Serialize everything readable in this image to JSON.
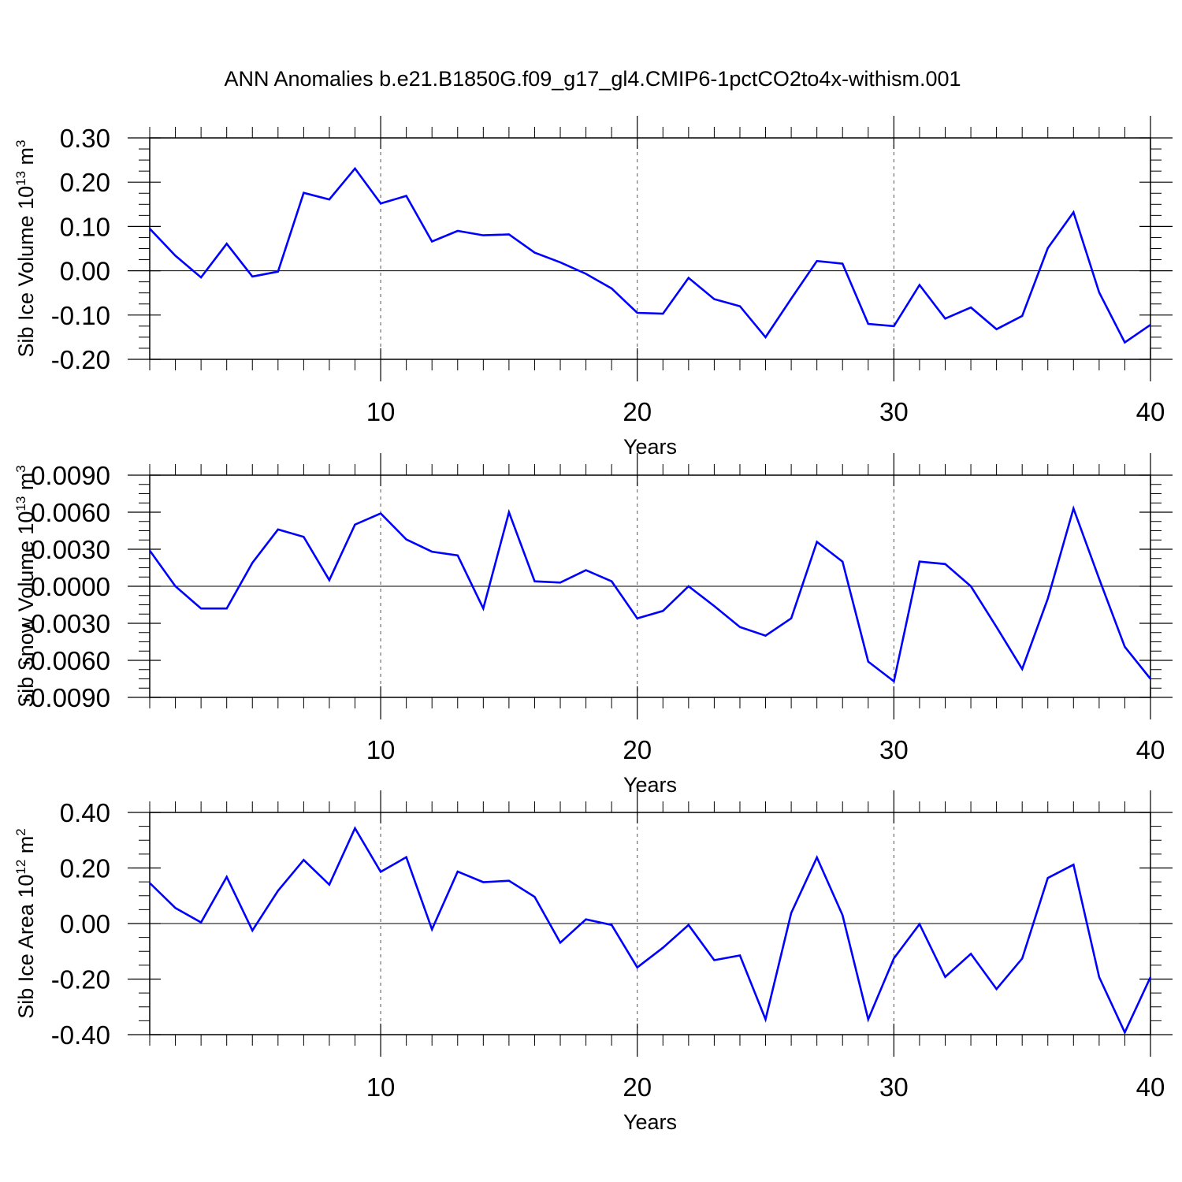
{
  "title": "ANN Anomalies b.e21.B1850G.f09_g17_gl4.CMIP6-1pctCO2to4x-withism.001",
  "colors": {
    "line": "#0000ff",
    "frame": "#000000",
    "grid": "#555555"
  },
  "chart_data": [
    {
      "type": "line",
      "xlabel": "Years",
      "ylabel": {
        "text": "Sib Ice Volume 10",
        "exp": "13",
        "unit": " m",
        "unit_exp": "3"
      },
      "xlim": [
        1,
        40
      ],
      "ylim": [
        -0.2,
        0.3
      ],
      "xticks": [
        10,
        20,
        30,
        40
      ],
      "xtick_labels": [
        "10",
        "20",
        "30",
        "40"
      ],
      "yticks": [
        0.3,
        0.2,
        0.1,
        0.0,
        -0.1,
        -0.2
      ],
      "ytick_labels": [
        "0.30",
        "0.20",
        "0.10",
        "0.00",
        "-0.10",
        "-0.20"
      ],
      "ygrid_zero": true,
      "xgrid": [
        10,
        20,
        30
      ],
      "x": [
        1,
        2,
        3,
        4,
        5,
        6,
        7,
        8,
        9,
        10,
        11,
        12,
        13,
        14,
        15,
        16,
        17,
        18,
        19,
        20,
        21,
        22,
        23,
        24,
        25,
        26,
        27,
        28,
        29,
        30,
        31,
        32,
        33,
        34,
        35,
        36,
        37,
        38,
        39,
        40
      ],
      "values": [
        0.095,
        0.034,
        -0.015,
        0.061,
        -0.013,
        -0.002,
        0.176,
        0.161,
        0.231,
        0.152,
        0.169,
        0.066,
        0.09,
        0.08,
        0.082,
        0.041,
        0.019,
        -0.007,
        -0.04,
        -0.095,
        -0.097,
        -0.016,
        -0.064,
        -0.08,
        -0.15,
        -0.063,
        0.022,
        0.016,
        -0.12,
        -0.125,
        -0.032,
        -0.108,
        -0.083,
        -0.132,
        -0.102,
        0.051,
        0.132,
        -0.049,
        -0.162,
        -0.122
      ]
    },
    {
      "type": "line",
      "xlabel": "Years",
      "ylabel": {
        "text": "Sib Snow Volume 10",
        "exp": "13",
        "unit": " m",
        "unit_exp": "3"
      },
      "xlim": [
        1,
        40
      ],
      "ylim": [
        -0.009,
        0.009
      ],
      "xticks": [
        10,
        20,
        30,
        40
      ],
      "xtick_labels": [
        "10",
        "20",
        "30",
        "40"
      ],
      "yticks": [
        0.009,
        0.006,
        0.003,
        0.0,
        -0.003,
        -0.006,
        -0.009
      ],
      "ytick_labels": [
        "0.0090",
        "0.0060",
        "0.0030",
        "0.0000",
        "-0.0030",
        "-0.0060",
        "-0.0090"
      ],
      "ygrid_zero": true,
      "xgrid": [
        10,
        20,
        30
      ],
      "x": [
        1,
        2,
        3,
        4,
        5,
        6,
        7,
        8,
        9,
        10,
        11,
        12,
        13,
        14,
        15,
        16,
        17,
        18,
        19,
        20,
        21,
        22,
        23,
        24,
        25,
        26,
        27,
        28,
        29,
        30,
        31,
        32,
        33,
        34,
        35,
        36,
        37,
        38,
        39,
        40
      ],
      "values": [
        0.0029,
        0.0,
        -0.0018,
        -0.0018,
        0.0019,
        0.0046,
        0.004,
        0.0005,
        0.005,
        0.0059,
        0.0038,
        0.0028,
        0.0025,
        -0.0018,
        0.006,
        0.0004,
        0.0003,
        0.0013,
        0.0004,
        -0.0026,
        -0.002,
        0.0,
        -0.0016,
        -0.0033,
        -0.004,
        -0.0026,
        0.0036,
        0.002,
        -0.0061,
        -0.0077,
        0.002,
        0.0018,
        0.0,
        -0.0033,
        -0.0067,
        -0.001,
        0.0063,
        0.0006,
        -0.0049,
        -0.0075
      ]
    },
    {
      "type": "line",
      "xlabel": "Years",
      "ylabel": {
        "text": "Sib Ice Area 10",
        "exp": "12",
        "unit": " m",
        "unit_exp": "2"
      },
      "xlim": [
        1,
        40
      ],
      "ylim": [
        -0.4,
        0.4
      ],
      "xticks": [
        10,
        20,
        30,
        40
      ],
      "xtick_labels": [
        "10",
        "20",
        "30",
        "40"
      ],
      "yticks": [
        0.4,
        0.2,
        0.0,
        -0.2,
        -0.4
      ],
      "ytick_labels": [
        "0.40",
        "0.20",
        "0.00",
        "-0.20",
        "-0.40"
      ],
      "ygrid_zero": true,
      "xgrid": [
        10,
        20,
        30
      ],
      "x": [
        1,
        2,
        3,
        4,
        5,
        6,
        7,
        8,
        9,
        10,
        11,
        12,
        13,
        14,
        15,
        16,
        17,
        18,
        19,
        20,
        21,
        22,
        23,
        24,
        25,
        26,
        27,
        28,
        29,
        30,
        31,
        32,
        33,
        34,
        35,
        36,
        37,
        38,
        39,
        40
      ],
      "values": [
        0.146,
        0.056,
        0.004,
        0.168,
        -0.025,
        0.118,
        0.229,
        0.14,
        0.343,
        0.186,
        0.239,
        -0.021,
        0.187,
        0.149,
        0.154,
        0.096,
        -0.069,
        0.015,
        -0.005,
        -0.158,
        -0.087,
        -0.005,
        -0.132,
        -0.115,
        -0.345,
        0.038,
        0.238,
        0.03,
        -0.345,
        -0.125,
        -0.002,
        -0.192,
        -0.109,
        -0.236,
        -0.126,
        0.164,
        0.212,
        -0.193,
        -0.392,
        -0.193
      ]
    }
  ]
}
